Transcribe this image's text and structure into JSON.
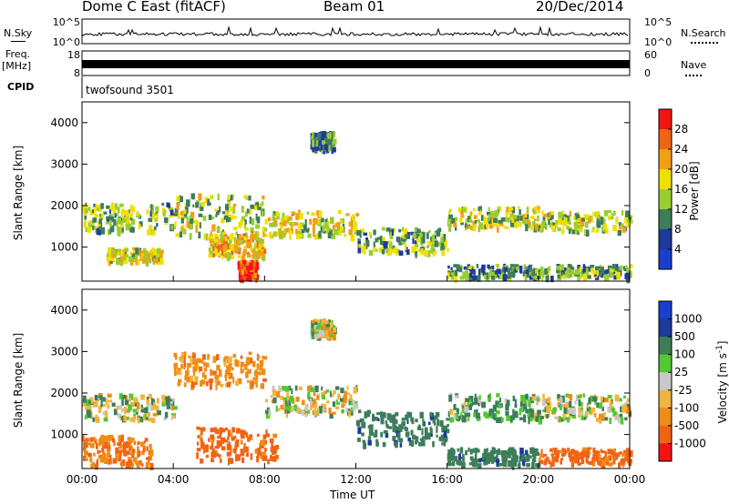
{
  "header": {
    "station": "Dome C East (fitACF)",
    "beam": "Beam 01",
    "date": "20/Dec/2014"
  },
  "nsky_panel": {
    "left_label": "N.Sky",
    "right_label": "N.Search",
    "left_ticks": [
      "10^5",
      "10^0"
    ],
    "right_ticks": [
      "10^5",
      "10^0"
    ]
  },
  "freq_panel": {
    "left_label_line1": "Freq.",
    "left_label_line2": "[MHz]",
    "right_label": "Nave",
    "left_ticks": [
      "18",
      "8"
    ],
    "right_ticks": [
      "60",
      "0"
    ]
  },
  "cpid": {
    "label": "CPID",
    "value": "twofsound 3501"
  },
  "colors": {
    "blue": "#1a3fcc",
    "navy": "#203a9a",
    "green_dark": "#3d7d5a",
    "green": "#4f9f3a",
    "yellow": "#f0e000",
    "orange": "#f08c14",
    "red": "#f01414",
    "grey": "#c8c8c8"
  },
  "chart_data": [
    {
      "type": "heatmap",
      "title": "",
      "xlabel": "",
      "ylabel": "Slant Range [km]",
      "xlim": [
        "00:00",
        "24:00"
      ],
      "ylim": [
        180,
        4500
      ],
      "x_ticks": [
        "00:00",
        "04:00",
        "08:00",
        "12:00",
        "16:00",
        "20:00",
        "00:00"
      ],
      "y_ticks": [
        1000,
        2000,
        3000,
        4000
      ],
      "colorbar": {
        "label": "Power [dB]",
        "ticks": [
          "28",
          "24",
          "20",
          "16",
          "12",
          "8",
          "4"
        ],
        "range": [
          0,
          30
        ],
        "colors": [
          "#f01414",
          "#f06414",
          "#f0a014",
          "#f0e000",
          "#9acd32",
          "#3d7d5a",
          "#203a9a",
          "#1a3fcc"
        ]
      },
      "bands": [
        {
          "hours": [
            0.0,
            4.0
          ],
          "range_km": [
            1400,
            2100
          ],
          "level": 12
        },
        {
          "hours": [
            1.0,
            3.5
          ],
          "range_km": [
            700,
            1000
          ],
          "level": 16
        },
        {
          "hours": [
            4.0,
            8.0
          ],
          "range_km": [
            1300,
            2300
          ],
          "level": 14
        },
        {
          "hours": [
            5.5,
            8.0
          ],
          "range_km": [
            800,
            1400
          ],
          "level": 20
        },
        {
          "hours": [
            6.8,
            7.6
          ],
          "range_km": [
            300,
            700
          ],
          "level": 28
        },
        {
          "hours": [
            8.0,
            12.0
          ],
          "range_km": [
            1300,
            1900
          ],
          "level": 16
        },
        {
          "hours": [
            10.0,
            11.0
          ],
          "range_km": [
            3400,
            3800
          ],
          "level": 8
        },
        {
          "hours": [
            12.0,
            16.0
          ],
          "range_km": [
            900,
            1500
          ],
          "level": 12
        },
        {
          "hours": [
            16.0,
            20.0
          ],
          "range_km": [
            300,
            600
          ],
          "level": 10
        },
        {
          "hours": [
            16.0,
            20.0
          ],
          "range_km": [
            1500,
            2000
          ],
          "level": 14
        },
        {
          "hours": [
            20.0,
            24.0
          ],
          "range_km": [
            1400,
            1900
          ],
          "level": 14
        },
        {
          "hours": [
            20.0,
            24.0
          ],
          "range_km": [
            300,
            600
          ],
          "level": 10
        }
      ]
    },
    {
      "type": "heatmap",
      "title": "",
      "xlabel": "Time UT",
      "ylabel": "Slant Range [km]",
      "xlim": [
        "00:00",
        "24:00"
      ],
      "ylim": [
        180,
        4500
      ],
      "x_ticks": [
        "00:00",
        "04:00",
        "08:00",
        "12:00",
        "16:00",
        "20:00",
        "00:00"
      ],
      "y_ticks": [
        1000,
        2000,
        3000,
        4000
      ],
      "colorbar": {
        "label": "Velocity [m s^-1]",
        "ticks": [
          "1000",
          "500",
          "100",
          "25",
          "-25",
          "-100",
          "-500",
          "-1000"
        ],
        "colors": [
          "#1a3fcc",
          "#203a9a",
          "#3d7d5a",
          "#52c832",
          "#c8c8c8",
          "#f0b440",
          "#f08c14",
          "#f06414",
          "#f01414"
        ]
      },
      "bands": [
        {
          "hours": [
            0.0,
            4.0
          ],
          "range_km": [
            1400,
            2000
          ],
          "velocity": 0
        },
        {
          "hours": [
            0.0,
            3.0
          ],
          "range_km": [
            300,
            1000
          ],
          "velocity": -300
        },
        {
          "hours": [
            4.0,
            8.0
          ],
          "range_km": [
            2200,
            3000
          ],
          "velocity": -200
        },
        {
          "hours": [
            5.0,
            8.5
          ],
          "range_km": [
            400,
            1200
          ],
          "velocity": -400
        },
        {
          "hours": [
            8.0,
            12.0
          ],
          "range_km": [
            1500,
            2200
          ],
          "velocity": 0
        },
        {
          "hours": [
            10.0,
            11.0
          ],
          "range_km": [
            3400,
            3800
          ],
          "velocity": 0
        },
        {
          "hours": [
            12.0,
            16.0
          ],
          "range_km": [
            800,
            1600
          ],
          "velocity": 200
        },
        {
          "hours": [
            16.0,
            20.0
          ],
          "range_km": [
            300,
            700
          ],
          "velocity": 200
        },
        {
          "hours": [
            16.0,
            20.0
          ],
          "range_km": [
            1400,
            2000
          ],
          "velocity": 100
        },
        {
          "hours": [
            20.0,
            24.0
          ],
          "range_km": [
            1400,
            2000
          ],
          "velocity": 0
        },
        {
          "hours": [
            20.0,
            24.0
          ],
          "range_km": [
            300,
            700
          ],
          "velocity": -400
        }
      ]
    }
  ]
}
